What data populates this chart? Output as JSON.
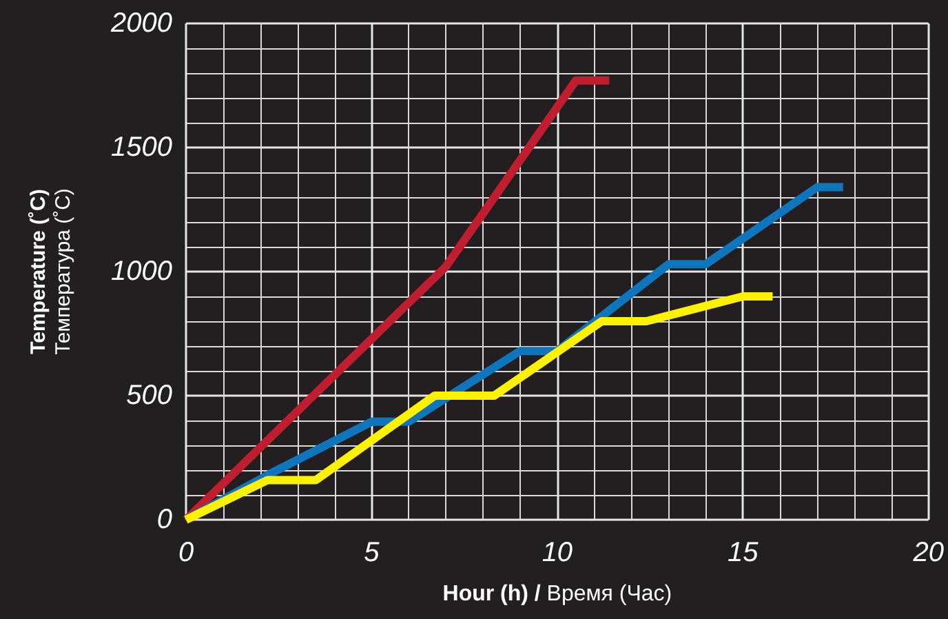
{
  "chart_data": {
    "type": "line",
    "xlabel": "Hour (h) / Время (Час)",
    "ylabel": "Temperature (˚C)\nТемпература (˚C)",
    "xlim": [
      0,
      20
    ],
    "xticks": [
      0,
      5,
      10,
      15,
      20
    ],
    "ylim": [
      0,
      2000
    ],
    "yticks": [
      0,
      500,
      1000,
      1500,
      2000
    ],
    "grid": true,
    "marker": "none",
    "line_style": "solid",
    "series": [
      {
        "color": "#be1e2d",
        "x": [
          0,
          7,
          10.5,
          11.4
        ],
        "values": [
          0,
          1020,
          1770,
          1770
        ]
      },
      {
        "color": "#0f75bc",
        "x": [
          0,
          2.2,
          5,
          6,
          9,
          10,
          13,
          14,
          17,
          17.7
        ],
        "values": [
          0,
          180,
          395,
          395,
          680,
          680,
          1030,
          1030,
          1340,
          1340
        ]
      },
      {
        "color": "#fff200",
        "x": [
          0,
          2.2,
          3.5,
          6.7,
          8.3,
          11.2,
          12.4,
          15,
          15.8
        ],
        "values": [
          0,
          160,
          160,
          500,
          500,
          800,
          800,
          900,
          900
        ]
      }
    ]
  }
}
